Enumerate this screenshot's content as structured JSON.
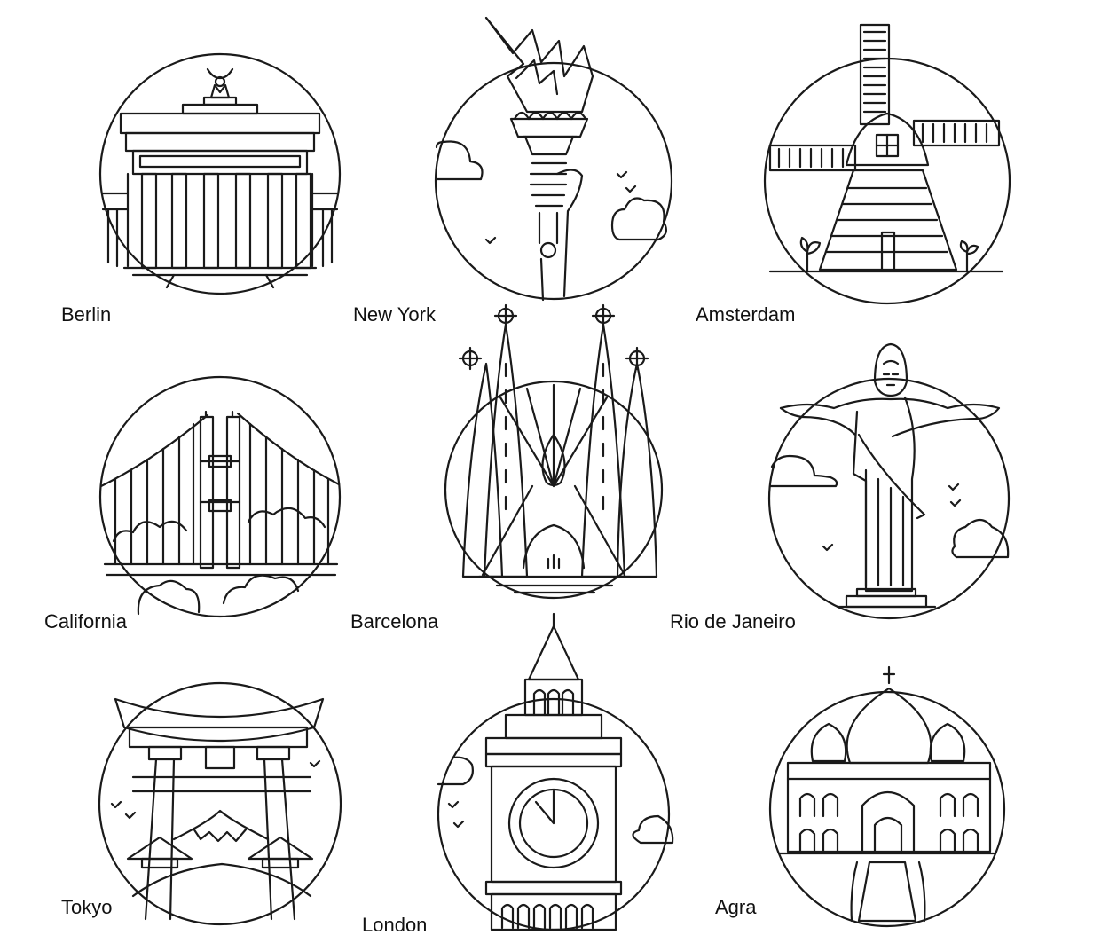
{
  "cities": [
    {
      "name": "Berlin",
      "icon": "brandenburg-gate-icon"
    },
    {
      "name": "New York",
      "icon": "statue-of-liberty-torch-icon"
    },
    {
      "name": "Amsterdam",
      "icon": "windmill-icon"
    },
    {
      "name": "California",
      "icon": "golden-gate-bridge-icon"
    },
    {
      "name": "Barcelona",
      "icon": "sagrada-familia-icon"
    },
    {
      "name": "Rio de Janeiro",
      "icon": "christ-the-redeemer-icon"
    },
    {
      "name": "Tokyo",
      "icon": "torii-gate-fuji-icon"
    },
    {
      "name": "London",
      "icon": "big-ben-icon"
    },
    {
      "name": "Agra",
      "icon": "taj-mahal-icon"
    }
  ],
  "stroke_color": "#1a1a1a",
  "background_color": "#ffffff"
}
